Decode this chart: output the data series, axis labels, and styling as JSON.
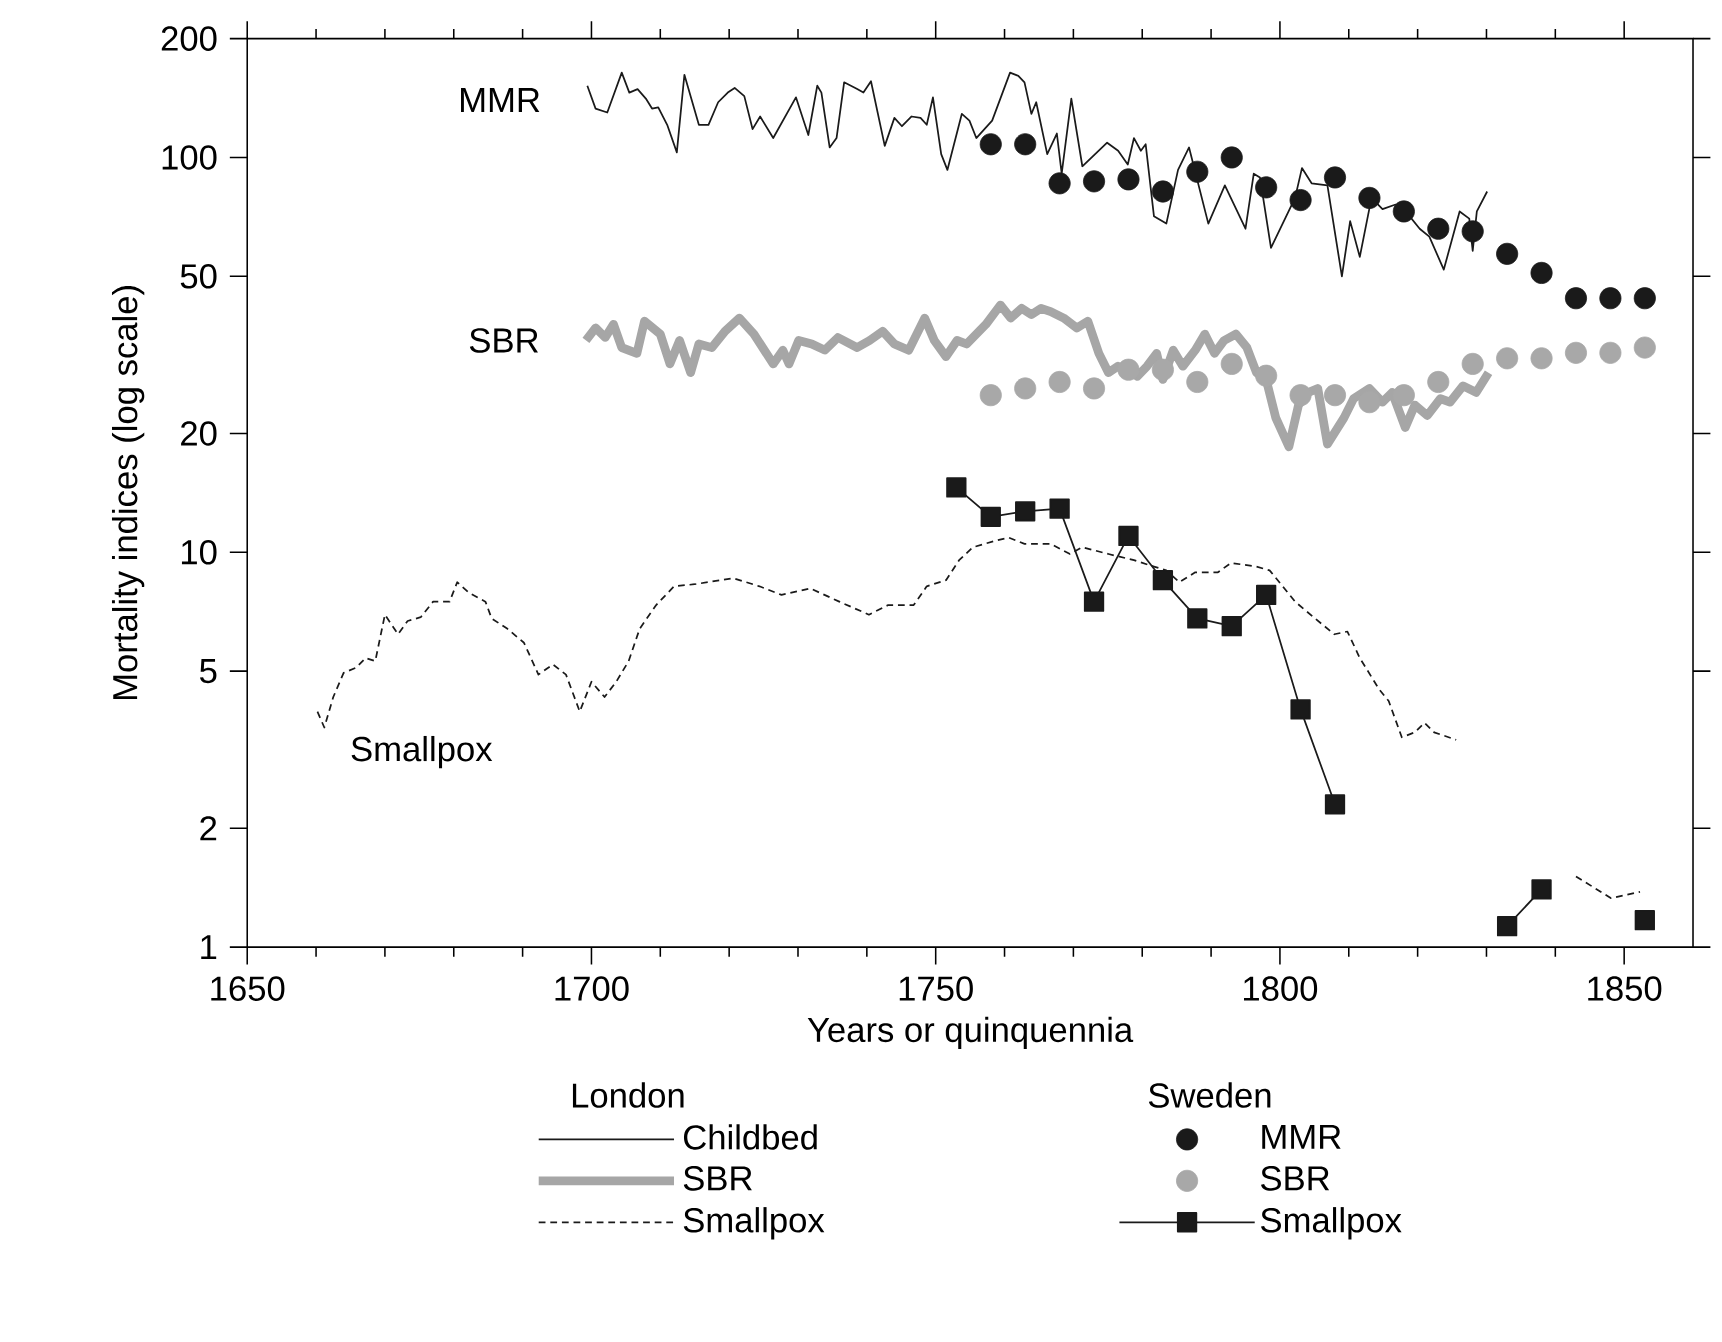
{
  "chart_data": {
    "type": "line",
    "xlabel": "Years or quinquennia",
    "ylabel": "Mortality indices (log scale)",
    "xlim": [
      1650,
      1860
    ],
    "xticks": [
      1650,
      1700,
      1750,
      1800,
      1850
    ],
    "ylim": [
      1,
      200
    ],
    "yticks": [
      1,
      2,
      5,
      10,
      20,
      50,
      100,
      200
    ],
    "log": "y",
    "legend": "bottom",
    "annotations": [
      "MMR",
      "SBR",
      "Smallpox",
      "London",
      "Sweden"
    ],
    "series": [
      {
        "name": "Childbed",
        "color": "#1a1a1a",
        "line_style": "solid",
        "marker": "none",
        "x": [
          1699.4,
          1700.6,
          1702.3,
          1704.4,
          1705.5,
          1706.7,
          1707.9,
          1708.8,
          1709.7,
          1711,
          1712.4,
          1713.5,
          1715.6,
          1717,
          1718.4,
          1719.8,
          1720.8,
          1722.2,
          1723.4,
          1724.5,
          1726.4,
          1729.7,
          1731.5,
          1732.8,
          1733.4,
          1734.6,
          1735.6,
          1736.7,
          1738.6,
          1739.5,
          1740.6,
          1742.6,
          1744,
          1745.1,
          1746.5,
          1747.8,
          1748.7,
          1749.6,
          1750.8,
          1751.7,
          1753.8,
          1754.9,
          1755.9,
          1758.2,
          1760.8,
          1762,
          1762.9,
          1763.9,
          1764.6,
          1766.2,
          1767.6,
          1768.3,
          1769.7,
          1771.3,
          1774.9,
          1776.5,
          1777.9,
          1778.8,
          1779.8,
          1780.5,
          1781.7,
          1783.5,
          1785.2,
          1786.8,
          1789.6,
          1792,
          1795,
          1796.2,
          1797.1,
          1798.7,
          1802.2,
          1803.2,
          1804.6,
          1806.9,
          1809,
          1810.2,
          1811.6,
          1813.3,
          1814.9,
          1816.8,
          1818,
          1820.3,
          1821.7,
          1823.8,
          1826.1,
          1827.5,
          1828,
          1828.6,
          1830.1
        ],
        "values": [
          152,
          133,
          130,
          164,
          146,
          149,
          141,
          133,
          134,
          121,
          103,
          162,
          121,
          121,
          138,
          146,
          150,
          143,
          118,
          127,
          112,
          142,
          114,
          152,
          146,
          106,
          112,
          155,
          149,
          146,
          156,
          107,
          126,
          120,
          127,
          126,
          121,
          142,
          102,
          93,
          129,
          124,
          112,
          124,
          164,
          161,
          155,
          129,
          138,
          102,
          115,
          91,
          141,
          95,
          109,
          104,
          96,
          112,
          104,
          108,
          71,
          68,
          93,
          106,
          68,
          85,
          66,
          91,
          89,
          59,
          79,
          94,
          86,
          85,
          50,
          69,
          56,
          79,
          74,
          76,
          74,
          66,
          63,
          52,
          73,
          70,
          58,
          73,
          82
        ]
      },
      {
        "name": "SBR",
        "color": "#a6a6a6",
        "line_style": "solid",
        "marker": "none",
        "x": [
          1699.2,
          1700.6,
          1702,
          1703.2,
          1704.4,
          1706.6,
          1707.7,
          1710,
          1711.4,
          1712.8,
          1714.4,
          1715.6,
          1717.5,
          1719.4,
          1721.5,
          1723.6,
          1726.4,
          1727.8,
          1728.7,
          1730.1,
          1732,
          1733.9,
          1735.8,
          1738.6,
          1740.4,
          1742.3,
          1744,
          1746.1,
          1748.4,
          1749.8,
          1751.5,
          1753.1,
          1754.5,
          1757.3,
          1759.4,
          1760.9,
          1762.5,
          1763.9,
          1765.3,
          1766.7,
          1768.6,
          1770.5,
          1772.1,
          1773.7,
          1775.1,
          1776.5,
          1777.9,
          1779.3,
          1780.7,
          1782.1,
          1783,
          1784.5,
          1785.9,
          1787.7,
          1789.1,
          1790.5,
          1791.9,
          1793.6,
          1795.2,
          1796.6,
          1798,
          1799.4,
          1801.3,
          1802.7,
          1804.1,
          1805.5,
          1806.9,
          1809.3,
          1810.7,
          1813,
          1814.9,
          1816.3,
          1818.2,
          1819.6,
          1821.4,
          1823.3,
          1824.7,
          1826.6,
          1828.5,
          1830.3
        ],
        "values": [
          34.4,
          37,
          35,
          37.8,
          33,
          31.9,
          38.5,
          35.7,
          30,
          34.4,
          28.5,
          33.7,
          33,
          36.3,
          39.2,
          35.7,
          30,
          32.5,
          30,
          34.4,
          33.7,
          32.5,
          35,
          33,
          34.4,
          36.3,
          33.7,
          32.5,
          39.2,
          34.4,
          31.3,
          34.4,
          33.7,
          37.8,
          42.3,
          39.2,
          41.5,
          40,
          41.5,
          40.7,
          39.2,
          37,
          38.5,
          31.9,
          28.5,
          29.6,
          29,
          27.9,
          29.6,
          31.9,
          27.4,
          32.5,
          29.6,
          32.5,
          35.7,
          31.9,
          34.4,
          35.7,
          33,
          28.5,
          27.4,
          21.9,
          18.5,
          23.6,
          25.4,
          26,
          18.8,
          21.9,
          24.5,
          26,
          24,
          25.4,
          20.7,
          23.6,
          22.2,
          24.5,
          24,
          26.4,
          25.4,
          28.5
        ]
      },
      {
        "name": "Smallpox",
        "color": "#1a1a1a",
        "line_style": "dashed",
        "marker": "none",
        "x": [
          1660.2,
          1661.2,
          1662.5,
          1664,
          1665.8,
          1667.2,
          1668.6,
          1670,
          1671.9,
          1673.3,
          1675.2,
          1677,
          1679.4,
          1680.5,
          1682.2,
          1684.6,
          1685.5,
          1687.8,
          1690.2,
          1692.3,
          1694.4,
          1696.3,
          1698.3,
          1700,
          1701.9,
          1703.6,
          1705.4,
          1707,
          1709.4,
          1712,
          1715,
          1720.6,
          1724.4,
          1727.6,
          1731.8,
          1736,
          1740.3,
          1743.1,
          1746.8,
          1748.7,
          1751.5,
          1753.4,
          1755.4,
          1758.7,
          1760.6,
          1762.9,
          1766.7,
          1769.5,
          1771.3,
          1775.1,
          1778.8,
          1781.7,
          1783.5,
          1785.4,
          1787.7,
          1791,
          1792.9,
          1796.6,
          1798.5,
          1800.4,
          1802.2,
          1805.1,
          1807.9,
          1809.8,
          1811.6,
          1814.4,
          1815.8,
          1817.7,
          1819.6,
          1821,
          1822.4,
          1825.6,
          1834,
          1843,
          1848.1,
          1852.3
        ],
        "values": [
          3.95,
          3.6,
          4.3,
          4.95,
          5.1,
          5.4,
          5.3,
          6.95,
          6.2,
          6.7,
          6.85,
          7.5,
          7.5,
          8.4,
          7.9,
          7.5,
          6.8,
          6.4,
          5.9,
          4.9,
          5.2,
          4.9,
          3.95,
          4.7,
          4.3,
          4.7,
          5.3,
          6.4,
          7.35,
          8.2,
          8.3,
          8.6,
          8.2,
          7.8,
          8.1,
          7.5,
          6.95,
          7.35,
          7.35,
          8.2,
          8.5,
          9.55,
          10.3,
          10.7,
          10.9,
          10.5,
          10.5,
          9.9,
          10.3,
          9.9,
          9.55,
          9.2,
          9.0,
          8.4,
          8.9,
          8.9,
          9.4,
          9.2,
          9.0,
          8.2,
          7.5,
          6.8,
          6.2,
          6.3,
          5.4,
          4.5,
          4.2,
          3.4,
          3.5,
          3.7,
          3.5,
          3.35,
          null,
          1.51,
          1.33,
          1.38
        ]
      },
      {
        "name": "MMR",
        "type": "scatter",
        "color": "#1a1a1a",
        "marker": "circle",
        "x": [
          1758,
          1763,
          1768,
          1773,
          1778,
          1783,
          1788,
          1793,
          1798,
          1803,
          1808,
          1813,
          1818,
          1823,
          1828,
          1833,
          1838,
          1843,
          1848,
          1853
        ],
        "values": [
          108,
          108,
          86,
          87,
          88,
          82,
          92,
          100,
          84,
          78,
          89,
          79,
          73,
          66,
          65,
          57,
          51,
          44,
          44,
          44
        ]
      },
      {
        "name": "SBR",
        "type": "scatter",
        "color": "#a8a8a8",
        "marker": "circle",
        "x": [
          1758,
          1763,
          1768,
          1773,
          1778,
          1783,
          1788,
          1793,
          1798,
          1803,
          1808,
          1813,
          1818,
          1823,
          1828,
          1833,
          1838,
          1843,
          1848,
          1853
        ],
        "values": [
          25,
          26,
          27,
          26,
          29,
          29,
          27,
          30,
          28,
          25,
          25,
          24,
          25,
          27,
          30,
          31,
          31,
          32,
          32,
          33
        ]
      },
      {
        "name": "Smallpox",
        "type": "line",
        "color": "#1a1a1a",
        "line_style": "solid",
        "marker": "square",
        "x": [
          1753,
          1758,
          1763,
          1768,
          1773,
          1778,
          1783,
          1788,
          1793,
          1798,
          1803,
          1808,
          1813,
          1818,
          1823,
          1828,
          1833,
          1838,
          1843,
          1848,
          1853
        ],
        "values": [
          14.6,
          12.3,
          12.7,
          12.9,
          7.5,
          11,
          8.5,
          6.8,
          6.5,
          7.8,
          4.0,
          2.3,
          null,
          null,
          null,
          null,
          1.13,
          1.4,
          null,
          null,
          1.17
        ]
      }
    ]
  }
}
